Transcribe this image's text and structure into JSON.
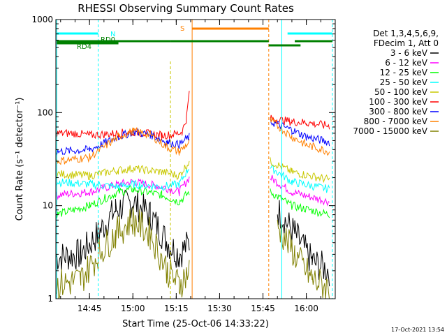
{
  "chart_data": {
    "type": "line",
    "title": "RHESSI Observing Summary Count Rates",
    "xlabel": "Start Time (25-Oct-06 14:33:22)",
    "ylabel": "Count Rate (s⁻¹ detector⁻¹)",
    "y_scale": "log",
    "ylim": [
      1,
      1000
    ],
    "xlim": [
      "14:33:22",
      "16:10:00"
    ],
    "x_ticks": [
      "14:45",
      "15:00",
      "15:15",
      "15:30",
      "15:45",
      "16:00"
    ],
    "y_ticks": [
      "1",
      "10",
      "100",
      "1000"
    ],
    "legend_header": [
      "Det 1,3,4,5,6,9,",
      "FDecim 1, Att 0"
    ],
    "legend_position": "right",
    "timestamp": "17-Oct-2021 13:54",
    "flag_labels": {
      "night": "N",
      "saa": "S",
      "rd0": "RD0",
      "rd4": "RD4"
    },
    "series": [
      {
        "name": "3 - 6 keV",
        "color": "#000000",
        "values": [
          [
            "14:33:22",
            2.8
          ],
          [
            "14:42:00",
            3.0
          ],
          [
            "14:48:00",
            5
          ],
          [
            "14:54:00",
            9
          ],
          [
            "15:00:00",
            11
          ],
          [
            "15:06:00",
            8
          ],
          [
            "15:12:00",
            4
          ],
          [
            "15:16:00",
            3.0
          ],
          [
            "15:19:30",
            4
          ],
          [
            "15:50:00",
            9
          ],
          [
            "15:56:00",
            5
          ],
          [
            "16:02:00",
            2.5
          ],
          [
            "16:08:00",
            2.0
          ]
        ]
      },
      {
        "name": "6 - 12 keV",
        "color": "#ff00ff",
        "values": [
          [
            "14:33:22",
            13
          ],
          [
            "14:45:00",
            14
          ],
          [
            "14:55:00",
            17
          ],
          [
            "15:00:00",
            18
          ],
          [
            "15:10:00",
            16
          ],
          [
            "15:16:00",
            14
          ],
          [
            "15:19:30",
            20
          ],
          [
            "15:47:30",
            20
          ],
          [
            "15:55:00",
            14
          ],
          [
            "16:08:00",
            11
          ]
        ]
      },
      {
        "name": "12 - 25 keV",
        "color": "#00ff00",
        "values": [
          [
            "14:33:22",
            8
          ],
          [
            "14:45:00",
            10
          ],
          [
            "14:55:00",
            14
          ],
          [
            "15:00:00",
            15
          ],
          [
            "15:10:00",
            13
          ],
          [
            "15:16:00",
            11
          ],
          [
            "15:19:30",
            14
          ],
          [
            "15:47:30",
            14
          ],
          [
            "15:55:00",
            10
          ],
          [
            "16:08:00",
            8
          ]
        ]
      },
      {
        "name": "25 - 50 keV",
        "color": "#00ffff",
        "values": [
          [
            "14:33:22",
            18
          ],
          [
            "14:45:00",
            17
          ],
          [
            "14:55:00",
            16
          ],
          [
            "15:00:00",
            17
          ],
          [
            "15:10:00",
            16
          ],
          [
            "15:16:00",
            17
          ],
          [
            "15:19:30",
            26
          ],
          [
            "15:47:30",
            26
          ],
          [
            "15:55:00",
            18
          ],
          [
            "16:08:00",
            15
          ]
        ]
      },
      {
        "name": "50 - 100 keV",
        "color": "#c8c800",
        "values": [
          [
            "14:33:22",
            22
          ],
          [
            "14:45:00",
            21
          ],
          [
            "14:55:00",
            24
          ],
          [
            "15:00:00",
            25
          ],
          [
            "15:10:00",
            23
          ],
          [
            "15:16:00",
            21
          ],
          [
            "15:19:30",
            30
          ],
          [
            "15:47:30",
            30
          ],
          [
            "15:55:00",
            23
          ],
          [
            "16:08:00",
            19
          ]
        ]
      },
      {
        "name": "100 - 300 keV",
        "color": "#ff0000",
        "values": [
          [
            "14:33:22",
            60
          ],
          [
            "14:40:00",
            60
          ],
          [
            "14:45:00",
            57
          ],
          [
            "14:55:00",
            60
          ],
          [
            "15:00:00",
            62
          ],
          [
            "15:10:00",
            57
          ],
          [
            "15:14:00",
            58
          ],
          [
            "15:17:00",
            62
          ],
          [
            "15:18:30",
            85
          ],
          [
            "15:19:30",
            165
          ],
          [
            "15:47:30",
            86
          ],
          [
            "15:55:00",
            80
          ],
          [
            "16:00:00",
            78
          ],
          [
            "16:08:00",
            72
          ]
        ]
      },
      {
        "name": "300 - 800 keV",
        "color": "#0000ff",
        "values": [
          [
            "14:33:22",
            38
          ],
          [
            "14:45:00",
            40
          ],
          [
            "14:55:00",
            55
          ],
          [
            "15:00:00",
            62
          ],
          [
            "15:06:00",
            58
          ],
          [
            "15:12:00",
            48
          ],
          [
            "15:16:00",
            45
          ],
          [
            "15:19:30",
            55
          ],
          [
            "15:47:30",
            80
          ],
          [
            "15:55:00",
            65
          ],
          [
            "16:00:00",
            55
          ],
          [
            "16:08:00",
            48
          ]
        ]
      },
      {
        "name": "800 - 7000 keV",
        "color": "#ff8000",
        "values": [
          [
            "14:33:22",
            30
          ],
          [
            "14:45:00",
            33
          ],
          [
            "14:55:00",
            55
          ],
          [
            "15:00:00",
            63
          ],
          [
            "15:06:00",
            58
          ],
          [
            "15:12:00",
            42
          ],
          [
            "15:16:00",
            38
          ],
          [
            "15:19:30",
            48
          ],
          [
            "15:47:30",
            83
          ],
          [
            "15:55:00",
            55
          ],
          [
            "16:00:00",
            45
          ],
          [
            "16:08:00",
            38
          ]
        ]
      },
      {
        "name": "7000 - 15000 keV",
        "color": "#808000",
        "values": [
          [
            "14:33:22",
            1.4
          ],
          [
            "14:42:00",
            1.6
          ],
          [
            "14:48:00",
            3.0
          ],
          [
            "14:54:00",
            5
          ],
          [
            "15:00:00",
            7
          ],
          [
            "15:06:00",
            5
          ],
          [
            "15:12:00",
            2
          ],
          [
            "15:16:00",
            1.4
          ],
          [
            "15:19:30",
            2
          ],
          [
            "15:50:00",
            6
          ],
          [
            "15:56:00",
            3
          ],
          [
            "16:02:00",
            1.6
          ],
          [
            "16:08:00",
            1.3
          ]
        ]
      }
    ]
  }
}
